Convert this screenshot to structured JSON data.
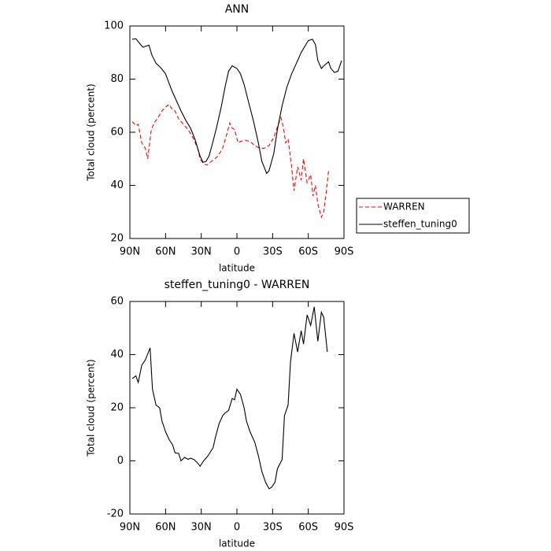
{
  "chart_data": [
    {
      "type": "line",
      "title": "ANN",
      "xlabel": "latitude",
      "ylabel": "Total cloud (percent)",
      "xlim": [
        90,
        -90
      ],
      "ylim": [
        20,
        100
      ],
      "xticks": [
        {
          "value": 90,
          "label": "90N"
        },
        {
          "value": 60,
          "label": "60N"
        },
        {
          "value": 30,
          "label": "30N"
        },
        0,
        {
          "value": -30,
          "label": "30S"
        },
        {
          "value": -60,
          "label": "60S"
        },
        {
          "value": -90,
          "label": "90S"
        }
      ],
      "yticks": [
        20,
        40,
        60,
        80,
        100
      ],
      "legend": "outside-right",
      "series": [
        {
          "name": "WARREN",
          "color": "#ff0000",
          "line_style": "dashed",
          "x": [
            88,
            85,
            83,
            80,
            77,
            75,
            72,
            69,
            67,
            63,
            60,
            57,
            55,
            52,
            49,
            45,
            41,
            37,
            33,
            31,
            28,
            25,
            23,
            20,
            16,
            12,
            8,
            6,
            4,
            2,
            -1,
            -3,
            -7,
            -11,
            -15,
            -19,
            -23,
            -27,
            -31,
            -34,
            -37,
            -39,
            -41,
            -43,
            -46,
            -48,
            -51,
            -54,
            -56,
            -59,
            -62,
            -64,
            -66,
            -68,
            -71,
            -73,
            -75,
            -77
          ],
          "values": [
            64,
            62.5,
            63,
            56,
            54,
            50,
            61,
            64,
            65,
            68,
            69.5,
            70.5,
            69,
            68,
            65,
            63,
            61,
            58,
            54,
            50,
            48,
            47.7,
            48.5,
            49.5,
            51,
            54,
            60,
            63.5,
            61.5,
            61,
            56,
            56.5,
            57,
            56.5,
            55,
            54,
            54,
            55,
            58,
            62,
            65.5,
            62,
            56,
            57.5,
            47,
            38,
            47,
            42,
            50,
            41,
            44,
            36,
            40,
            33,
            28,
            30,
            37,
            45.5
          ]
        },
        {
          "name": "steffen_tuning0",
          "color": "#000000",
          "line_style": "solid",
          "x": [
            88,
            85,
            81,
            79,
            74,
            71.5,
            68,
            63.5,
            60,
            57.5,
            55,
            51,
            47,
            43,
            39,
            35,
            31,
            28.5,
            26,
            23.5,
            21,
            17,
            13,
            10,
            7,
            4,
            0,
            -3,
            -6,
            -10,
            -14,
            -18,
            -21,
            -25,
            -27,
            -31,
            -34,
            -38,
            -42,
            -46,
            -50,
            -54,
            -58,
            -60,
            -63.5,
            -66,
            -68,
            -71,
            -73,
            -77,
            -79,
            -82,
            -85,
            -88
          ],
          "values": [
            95,
            95.2,
            93,
            92,
            92.8,
            89,
            86,
            84,
            82,
            79,
            76,
            72,
            68,
            64.5,
            61.5,
            57,
            51,
            48.7,
            49,
            51,
            55,
            62,
            70,
            77,
            83,
            85,
            84,
            82,
            78,
            71,
            64,
            56,
            49,
            44.5,
            45.5,
            52,
            61,
            70,
            77,
            82,
            86,
            90,
            93,
            94.5,
            95,
            93,
            87,
            84,
            85,
            86.5,
            84,
            82.5,
            83,
            87
          ]
        }
      ]
    },
    {
      "type": "line",
      "title": "steffen_tuning0 - WARREN",
      "xlabel": "latitude",
      "ylabel": "Total cloud (percent)",
      "xlim": [
        90,
        -90
      ],
      "ylim": [
        -20,
        60
      ],
      "xticks": [
        {
          "value": 90,
          "label": "90N"
        },
        {
          "value": 60,
          "label": "60N"
        },
        {
          "value": 30,
          "label": "30N"
        },
        0,
        {
          "value": -30,
          "label": "30S"
        },
        {
          "value": -60,
          "label": "60S"
        },
        {
          "value": -90,
          "label": "90S"
        }
      ],
      "yticks": [
        -20,
        0,
        20,
        40,
        60
      ],
      "series": [
        {
          "color": "#000000",
          "line_style": "solid",
          "x": [
            88,
            85,
            83,
            80,
            77,
            73,
            71,
            68,
            65,
            63,
            60,
            57,
            54,
            52,
            49,
            47,
            44,
            41,
            39,
            36,
            33,
            31,
            28,
            25,
            23,
            20,
            18,
            15,
            12,
            10,
            7,
            4,
            2,
            0,
            -3,
            -6,
            -8,
            -11,
            -15,
            -18,
            -21,
            -24,
            -27,
            -29,
            -32,
            -34,
            -38,
            -40,
            -43,
            -45,
            -48,
            -51,
            -54,
            -56,
            -59,
            -62,
            -65,
            -68,
            -71,
            -73,
            -76
          ],
          "values": [
            31,
            32,
            29.5,
            36,
            38,
            42.5,
            27,
            21,
            20,
            15,
            11,
            8,
            6,
            3,
            2.8,
            0,
            1.3,
            0.6,
            1,
            0.5,
            -0.8,
            -2,
            0,
            1.5,
            2.8,
            5,
            9,
            14,
            17,
            18,
            19,
            23.5,
            23,
            27,
            25,
            20,
            15,
            11,
            7,
            2,
            -4,
            -8,
            -10.5,
            -10,
            -8,
            -3,
            0.5,
            17,
            21,
            37,
            48,
            41,
            49,
            44,
            55,
            51,
            58,
            45,
            56,
            54,
            41
          ]
        }
      ]
    }
  ]
}
